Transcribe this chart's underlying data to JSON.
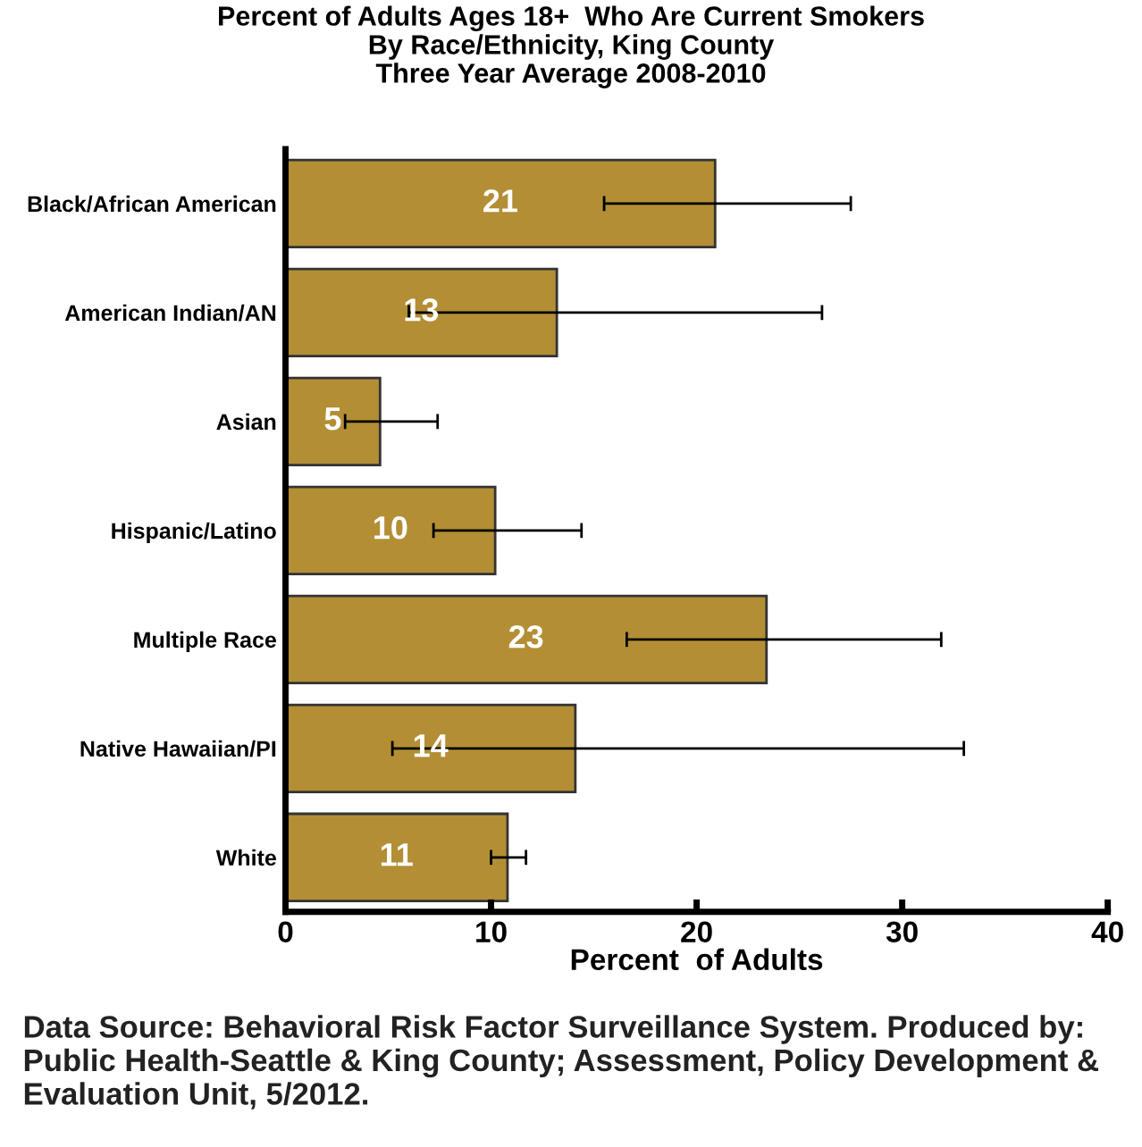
{
  "chart_data": {
    "type": "bar",
    "orientation": "horizontal",
    "title": "Percent of Adults Ages 18+  Who Are Current Smokers\nBy Race/Ethnicity, King County\nThree Year Average 2008-2010",
    "xlabel": "Percent  of Adults",
    "categories": [
      "Black/African American",
      "American Indian/AN",
      "Asian",
      "Hispanic/Latino",
      "Multiple Race",
      "Native Hawaiian/PI",
      "White"
    ],
    "values": [
      20.9,
      13.2,
      4.6,
      10.2,
      23.4,
      14.1,
      10.8
    ],
    "value_labels": [
      "21",
      "13",
      "5",
      "10",
      "23",
      "14",
      "11"
    ],
    "errors": [
      [
        15.5,
        27.5
      ],
      [
        6.0,
        26.1
      ],
      [
        2.9,
        7.4
      ],
      [
        7.2,
        14.4
      ],
      [
        16.6,
        31.9
      ],
      [
        5.2,
        33.0
      ],
      [
        10.0,
        11.7
      ]
    ],
    "color": "#b38e35",
    "xlim": [
      0,
      40
    ],
    "xticks": [
      0,
      10,
      20,
      30,
      40
    ],
    "grid": false,
    "legend": false,
    "annotations": [
      "Data Source: Behavioral Risk Factor Surveillance System. Produced by: Public Health-Seattle & King County; Assessment, Policy Development & Evaluation Unit, 5/2012."
    ]
  }
}
